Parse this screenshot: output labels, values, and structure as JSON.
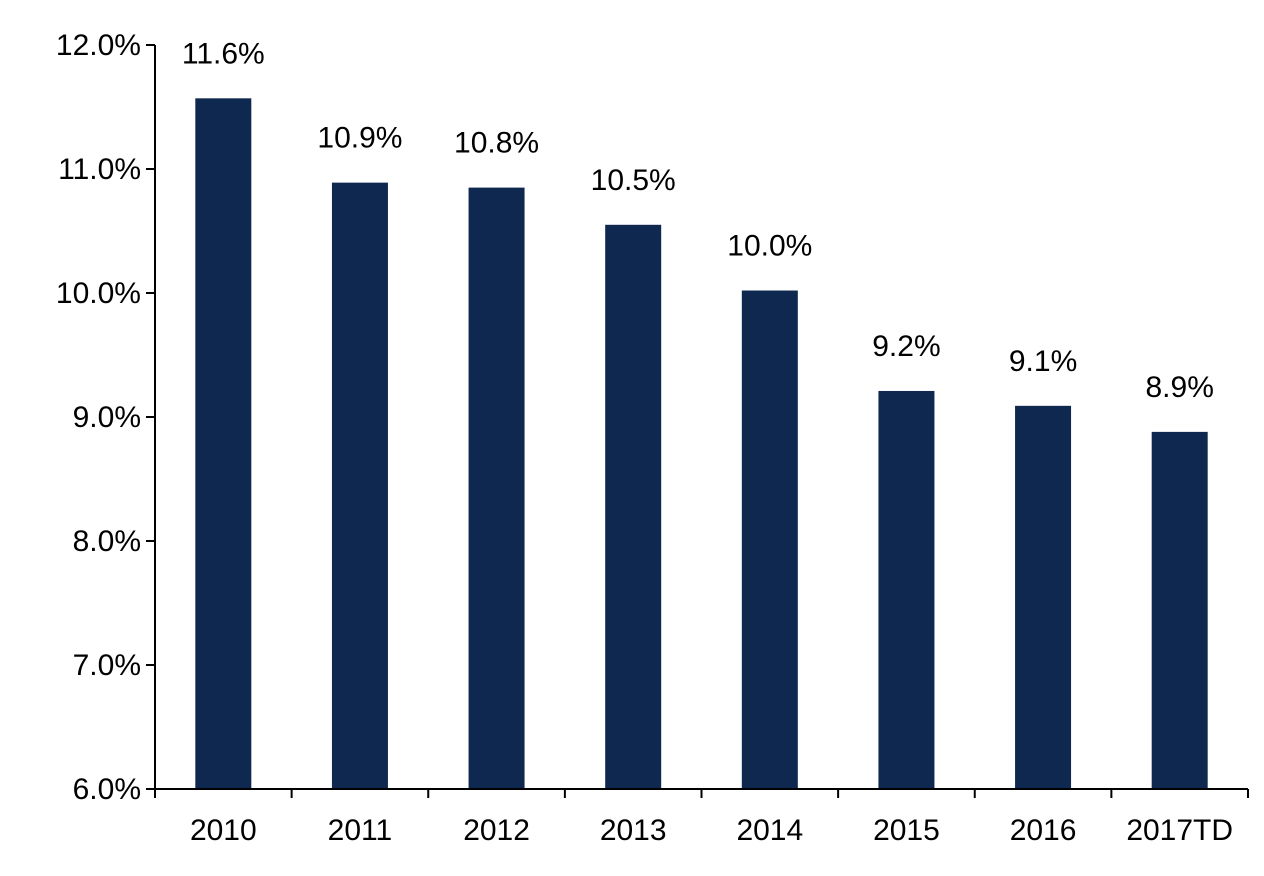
{
  "chart_data": {
    "type": "bar",
    "title": "",
    "xlabel": "",
    "ylabel": "",
    "categories": [
      "2010",
      "2011",
      "2012",
      "2013",
      "2014",
      "2015",
      "2016",
      "2017TD"
    ],
    "values": [
      11.57,
      10.89,
      10.85,
      10.55,
      10.02,
      9.21,
      9.09,
      8.88
    ],
    "data_labels": [
      "11.6%",
      "10.9%",
      "10.8%",
      "10.5%",
      "10.0%",
      "9.2%",
      "9.1%",
      "8.9%"
    ],
    "ylim": [
      6.0,
      12.0
    ],
    "yticks": [
      6.0,
      7.0,
      8.0,
      9.0,
      10.0,
      11.0,
      12.0
    ],
    "ytick_labels": [
      "6.0%",
      "7.0%",
      "8.0%",
      "9.0%",
      "10.0%",
      "11.0%",
      "12.0%"
    ],
    "grid": false,
    "legend": "none",
    "bar_color": "#0f284f",
    "axis_color": "#000000"
  }
}
